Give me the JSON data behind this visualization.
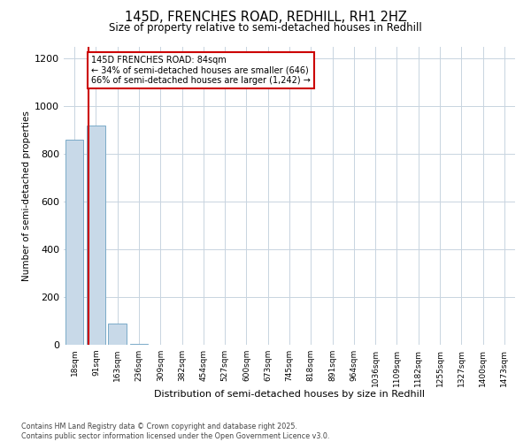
{
  "title_line1": "145D, FRENCHES ROAD, REDHILL, RH1 2HZ",
  "title_line2": "Size of property relative to semi-detached houses in Redhill",
  "xlabel": "Distribution of semi-detached houses by size in Redhill",
  "ylabel": "Number of semi-detached properties",
  "categories": [
    "18sqm",
    "91sqm",
    "163sqm",
    "236sqm",
    "309sqm",
    "382sqm",
    "454sqm",
    "527sqm",
    "600sqm",
    "673sqm",
    "745sqm",
    "818sqm",
    "891sqm",
    "964sqm",
    "1036sqm",
    "1109sqm",
    "1182sqm",
    "1255sqm",
    "1327sqm",
    "1400sqm",
    "1473sqm"
  ],
  "bar_values": [
    860,
    920,
    90,
    5,
    0,
    0,
    0,
    0,
    0,
    0,
    0,
    0,
    0,
    0,
    0,
    0,
    0,
    0,
    0,
    0,
    0
  ],
  "bar_color": "#c8d9e8",
  "bar_edge_color": "#7aaac8",
  "property_sqm": 84,
  "annotation_title": "145D FRENCHES ROAD: 84sqm",
  "annotation_line2": "← 34% of semi-detached houses are smaller (646)",
  "annotation_line3": "66% of semi-detached houses are larger (1,242) →",
  "annotation_box_color": "#ffffff",
  "annotation_box_edge": "#cc0000",
  "red_line_color": "#cc0000",
  "ylim": [
    0,
    1250
  ],
  "yticks": [
    0,
    200,
    400,
    600,
    800,
    1000,
    1200
  ],
  "footer_line1": "Contains HM Land Registry data © Crown copyright and database right 2025.",
  "footer_line2": "Contains public sector information licensed under the Open Government Licence v3.0.",
  "background_color": "#ffffff",
  "grid_color": "#c8d4e0"
}
